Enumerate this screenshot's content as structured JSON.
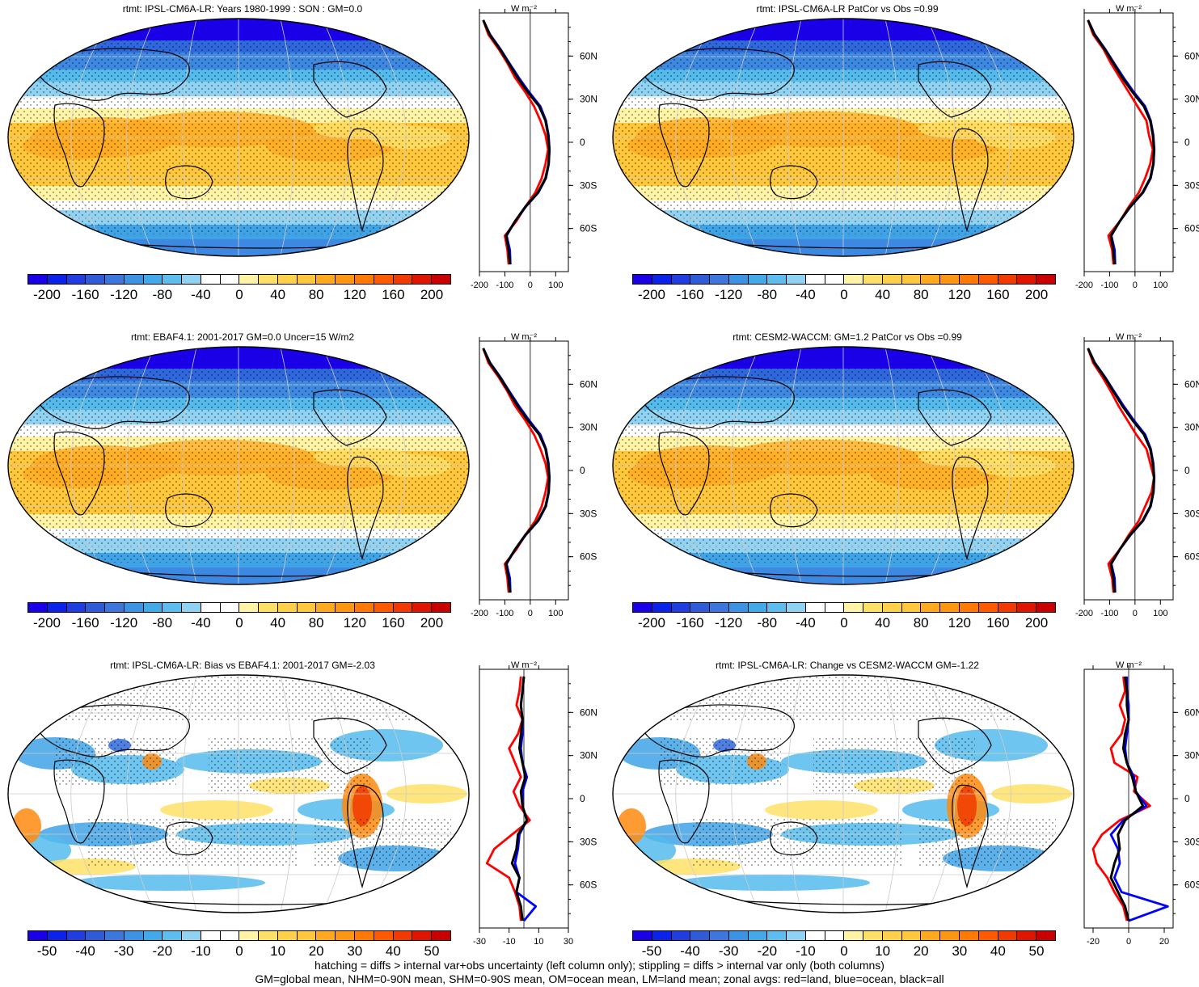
{
  "footer": {
    "line1": "hatching = diffs > internal var+obs uncertainty (left column only); stippling = diffs > internal var only (both columns)",
    "line2": "GM=global mean, NHM=0-90N mean, SHM=0-90S mean, OM=ocean mean, LM=land mean; zonal avgs: red=land, blue=ocean, black=all"
  },
  "zonal_unit": "W m⁻²",
  "lat_labels": [
    "60N",
    "30N",
    "0",
    "30S",
    "60S"
  ],
  "colors": {
    "full": [
      "#1a00e6",
      "#1f3de0",
      "#2f68dc",
      "#3d88e1",
      "#40a3e6",
      "#55bbec",
      "#8fd2f2",
      "#ffffff",
      "#ffffff",
      "#fff3a6",
      "#ffe066",
      "#ffc83c",
      "#ffaa1e",
      "#ff8a0f",
      "#ff6a00",
      "#f23a00",
      "#d50000"
    ],
    "land": "#ff0000",
    "ocean": "#0000ff",
    "all": "#000000"
  },
  "chart_data": [
    {
      "type": "heatmap",
      "title": "rtmt: IPSL-CM6A-LR: Years 1980-1999 : SON : GM=0.0",
      "colorbar_labels": [
        "-200",
        "-160",
        "-120",
        "-80",
        "-40",
        "0",
        "40",
        "80",
        "120",
        "160",
        "200"
      ],
      "zonal": {
        "x_ticks": [
          "-200",
          "-100",
          "0",
          "100"
        ],
        "xlim": [
          -200,
          150
        ],
        "lat": [
          85,
          75,
          65,
          55,
          45,
          35,
          25,
          15,
          5,
          -5,
          -15,
          -25,
          -35,
          -45,
          -55,
          -65,
          -75,
          -85
        ],
        "all": [
          -185,
          -160,
          -120,
          -85,
          -50,
          -10,
          35,
          60,
          70,
          75,
          72,
          60,
          30,
          -20,
          -60,
          -95,
          -85,
          -80
        ],
        "land": [
          -185,
          -165,
          -125,
          -90,
          -60,
          -20,
          15,
          40,
          60,
          70,
          60,
          45,
          20,
          -20,
          -55,
          -100,
          -90,
          -85
        ],
        "ocean": [
          -185,
          -158,
          -118,
          -82,
          -45,
          -5,
          40,
          62,
          72,
          76,
          73,
          62,
          32,
          -18,
          -60,
          -93,
          -80,
          -78
        ]
      }
    },
    {
      "type": "heatmap",
      "title": "rtmt: IPSL-CM6A-LR PatCor vs Obs =0.99",
      "colorbar_labels": [
        "-200",
        "-160",
        "-120",
        "-80",
        "-40",
        "0",
        "40",
        "80",
        "120",
        "160",
        "200"
      ],
      "zonal": {
        "x_ticks": [
          "-200",
          "-100",
          "0",
          "100"
        ],
        "xlim": [
          -200,
          150
        ],
        "lat": [
          85,
          75,
          65,
          55,
          45,
          35,
          25,
          15,
          5,
          -5,
          -15,
          -25,
          -35,
          -45,
          -55,
          -65,
          -75,
          -85
        ],
        "all": [
          -185,
          -160,
          -120,
          -85,
          -50,
          -10,
          35,
          60,
          70,
          75,
          72,
          60,
          30,
          -20,
          -60,
          -95,
          -85,
          -80
        ],
        "land": [
          -185,
          -165,
          -125,
          -95,
          -60,
          -25,
          10,
          45,
          55,
          70,
          60,
          40,
          15,
          -25,
          -60,
          -105,
          -90,
          -85
        ],
        "ocean": [
          -185,
          -158,
          -118,
          -82,
          -45,
          -5,
          40,
          62,
          72,
          76,
          73,
          62,
          32,
          -18,
          -60,
          -93,
          -80,
          -78
        ]
      }
    },
    {
      "type": "heatmap",
      "title": "rtmt: EBAF4.1: 2001-2017 GM=0.0 Uncer=15 W/m2",
      "colorbar_labels": [
        "-200",
        "-160",
        "-120",
        "-80",
        "-40",
        "0",
        "40",
        "80",
        "120",
        "160",
        "200"
      ],
      "zonal": {
        "x_ticks": [
          "-200",
          "-100",
          "0",
          "100"
        ],
        "xlim": [
          -200,
          150
        ],
        "lat": [
          85,
          75,
          65,
          55,
          45,
          35,
          25,
          15,
          5,
          -5,
          -15,
          -25,
          -35,
          -45,
          -55,
          -65,
          -75,
          -85
        ],
        "all": [
          -185,
          -160,
          -120,
          -85,
          -50,
          -10,
          35,
          60,
          70,
          75,
          72,
          60,
          30,
          -20,
          -60,
          -95,
          -85,
          -80
        ],
        "land": [
          -185,
          -165,
          -125,
          -90,
          -60,
          -20,
          15,
          40,
          60,
          70,
          60,
          45,
          20,
          -20,
          -55,
          -100,
          -90,
          -85
        ],
        "ocean": [
          -185,
          -158,
          -118,
          -82,
          -45,
          -5,
          40,
          62,
          72,
          76,
          73,
          62,
          32,
          -18,
          -60,
          -93,
          -80,
          -78
        ]
      }
    },
    {
      "type": "heatmap",
      "title": "rtmt: CESM2-WACCM: GM=1.2 PatCor vs Obs =0.99",
      "colorbar_labels": [
        "-200",
        "-160",
        "-120",
        "-80",
        "-40",
        "0",
        "40",
        "80",
        "120",
        "160",
        "200"
      ],
      "zonal": {
        "x_ticks": [
          "-200",
          "-100",
          "0",
          "100"
        ],
        "xlim": [
          -200,
          150
        ],
        "lat": [
          85,
          75,
          65,
          55,
          45,
          35,
          25,
          15,
          5,
          -5,
          -15,
          -25,
          -35,
          -45,
          -55,
          -65,
          -75,
          -85
        ],
        "all": [
          -185,
          -160,
          -120,
          -85,
          -50,
          -10,
          35,
          60,
          70,
          75,
          72,
          60,
          30,
          -20,
          -60,
          -95,
          -85,
          -80
        ],
        "land": [
          -185,
          -165,
          -128,
          -95,
          -65,
          -30,
          5,
          45,
          60,
          75,
          65,
          40,
          15,
          -25,
          -60,
          -105,
          -90,
          -85
        ],
        "ocean": [
          -185,
          -158,
          -118,
          -82,
          -45,
          -5,
          40,
          62,
          72,
          76,
          73,
          62,
          32,
          -18,
          -60,
          -93,
          -80,
          -78
        ]
      }
    },
    {
      "type": "heatmap",
      "title": "rtmt: IPSL-CM6A-LR: Bias vs EBAF4.1: 2001-2017  GM=-2.03",
      "colorbar_labels": [
        "-50",
        "-40",
        "-30",
        "-20",
        "-10",
        "0",
        "10",
        "20",
        "30",
        "40",
        "50"
      ],
      "zonal": {
        "x_ticks": [
          "-30",
          "-10",
          "10",
          "30"
        ],
        "xlim": [
          -30,
          30
        ],
        "lat": [
          85,
          75,
          65,
          55,
          45,
          35,
          25,
          15,
          5,
          -5,
          -15,
          -25,
          -35,
          -45,
          -55,
          -65,
          -75,
          -85
        ],
        "all": [
          0,
          -1,
          -2,
          -1,
          -2,
          -3,
          -1,
          1,
          -2,
          -1,
          2,
          -4,
          -5,
          -8,
          -3,
          -5,
          -2,
          -1
        ],
        "land": [
          -2,
          -3,
          -5,
          -1,
          -4,
          -10,
          -6,
          -2,
          -7,
          -3,
          4,
          -8,
          -20,
          -25,
          -10,
          -6,
          -3,
          -2
        ],
        "ocean": [
          0,
          -1,
          -2,
          -1,
          -1,
          -2,
          -1,
          2,
          -1,
          -1,
          2,
          -3,
          -4,
          -6,
          -3,
          -5,
          8,
          0
        ]
      }
    },
    {
      "type": "heatmap",
      "title": "rtmt: IPSL-CM6A-LR: Change vs CESM2-WACCM GM=-1.22",
      "colorbar_labels": [
        "-50",
        "-40",
        "-30",
        "-20",
        "-10",
        "0",
        "10",
        "20",
        "30",
        "40",
        "50"
      ],
      "zonal": {
        "x_ticks": [
          "-20",
          "0",
          "20"
        ],
        "xlim": [
          -25,
          25
        ],
        "lat": [
          85,
          75,
          65,
          55,
          45,
          35,
          25,
          15,
          5,
          -5,
          -15,
          -25,
          -35,
          -45,
          -55,
          -65,
          -75,
          -85
        ],
        "all": [
          -2,
          -1,
          -1,
          0,
          -2,
          -3,
          -1,
          2,
          4,
          8,
          -2,
          -6,
          -5,
          -8,
          -10,
          -6,
          -2,
          0
        ],
        "land": [
          -3,
          -2,
          -5,
          -2,
          -4,
          -10,
          -8,
          5,
          3,
          12,
          -5,
          -15,
          -20,
          -18,
          -12,
          -8,
          -3,
          -1
        ],
        "ocean": [
          -1,
          -1,
          0,
          0,
          -1,
          -2,
          -1,
          3,
          4,
          10,
          -3,
          -10,
          -6,
          -5,
          -8,
          -4,
          22,
          0
        ]
      }
    }
  ]
}
